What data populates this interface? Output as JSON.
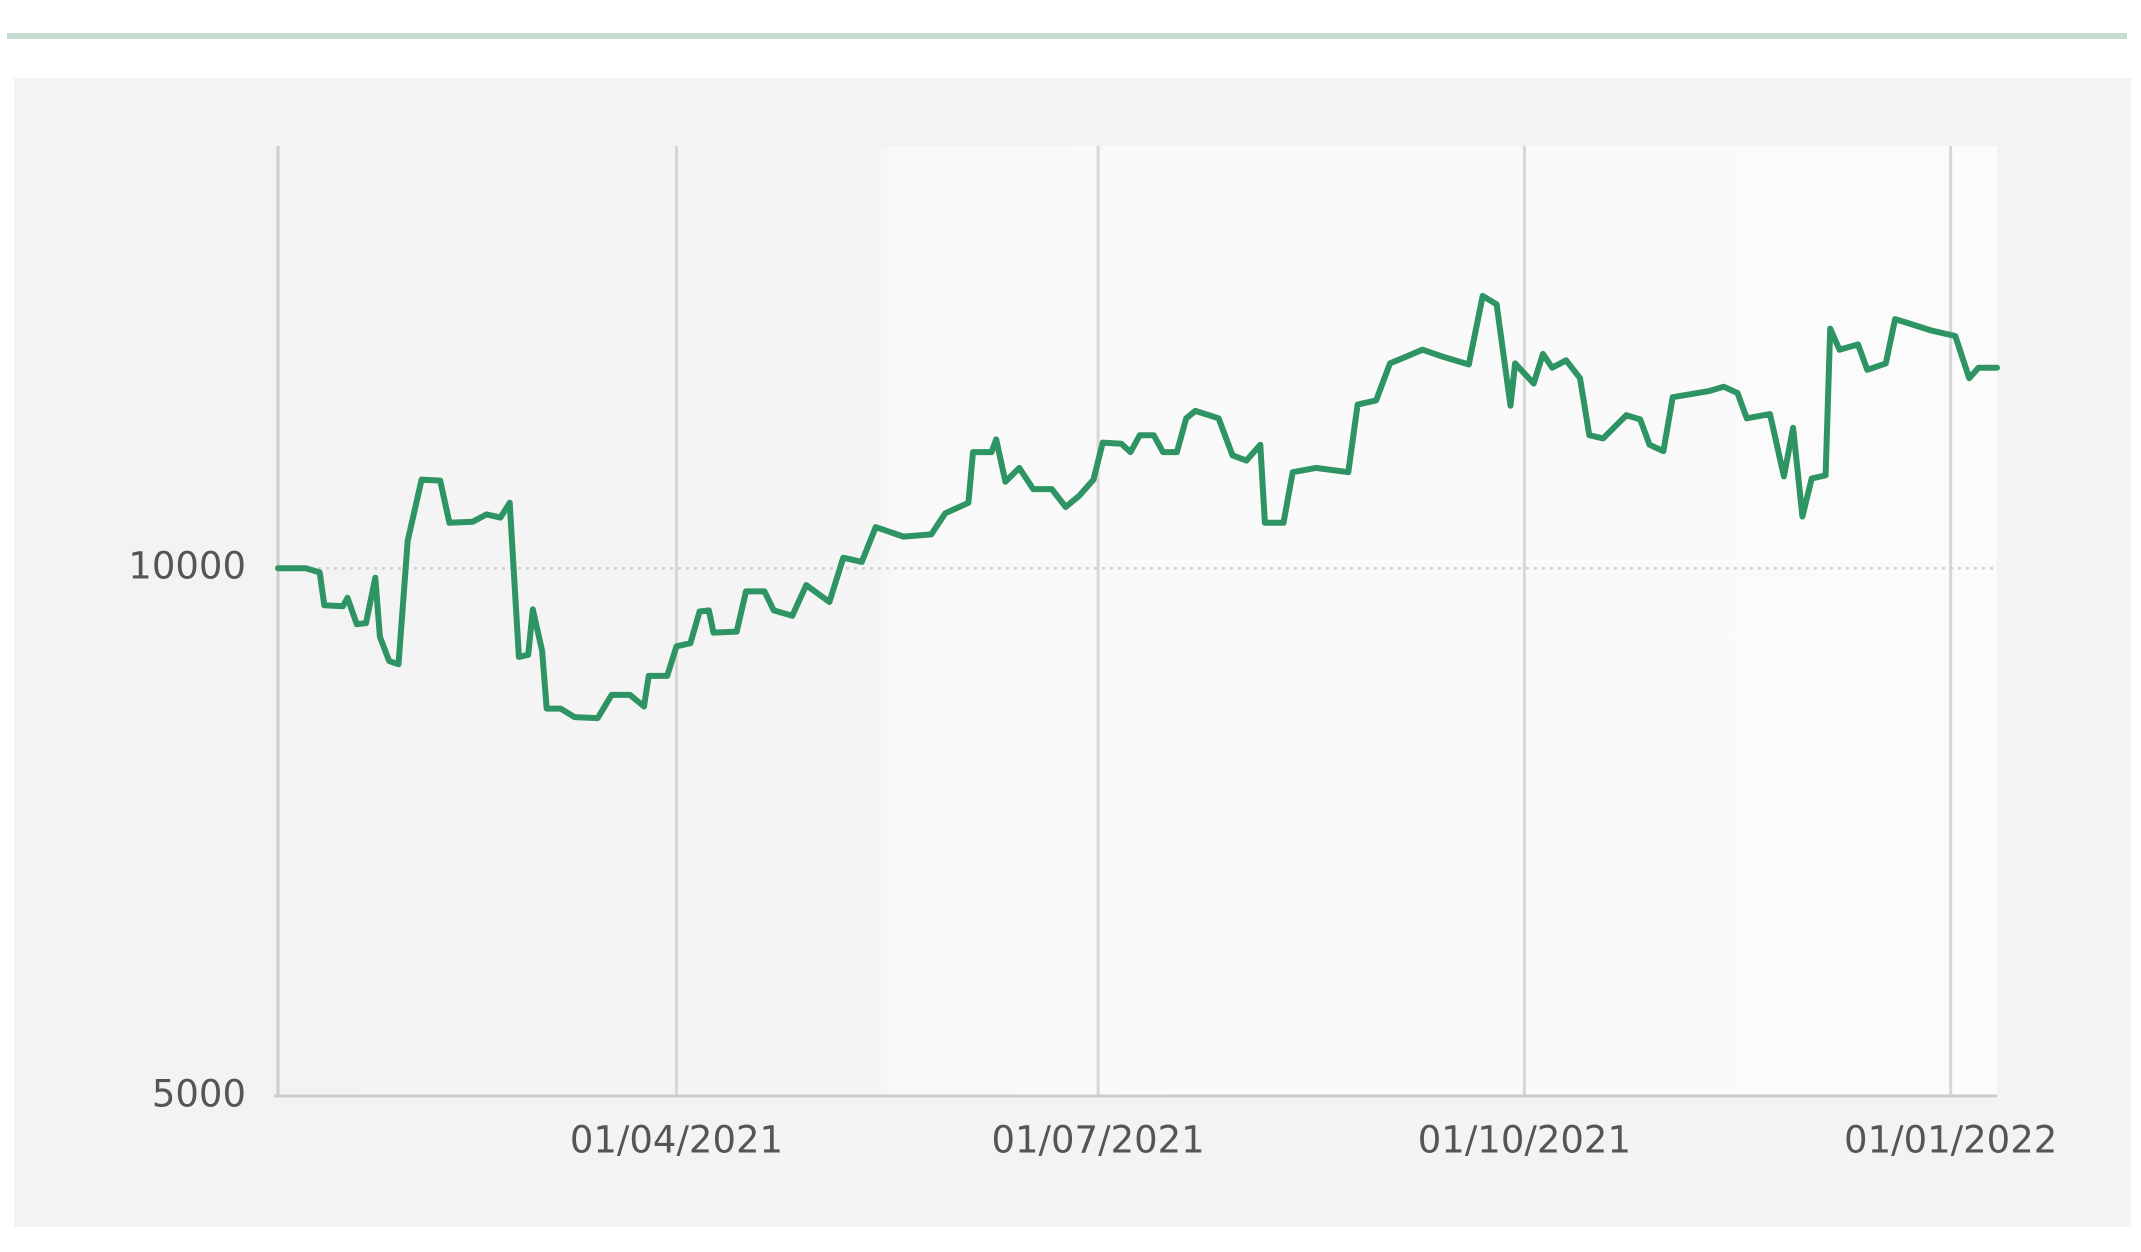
{
  "chart_data": {
    "type": "line",
    "x": [
      "2021-01-05",
      "2021-01-11",
      "2021-01-14",
      "2021-01-15",
      "2021-01-19",
      "2021-01-20",
      "2021-01-22",
      "2021-01-24",
      "2021-01-26",
      "2021-01-27",
      "2021-01-29",
      "2021-01-31",
      "2021-02-02",
      "2021-02-05",
      "2021-02-09",
      "2021-02-11",
      "2021-02-16",
      "2021-02-19",
      "2021-02-22",
      "2021-02-24",
      "2021-02-26",
      "2021-02-28",
      "2021-03-01",
      "2021-03-03",
      "2021-03-04",
      "2021-03-07",
      "2021-03-10",
      "2021-03-15",
      "2021-03-18",
      "2021-03-22",
      "2021-03-25",
      "2021-03-26",
      "2021-03-30",
      "2021-04-01",
      "2021-04-04",
      "2021-04-06",
      "2021-04-08",
      "2021-04-09",
      "2021-04-14",
      "2021-04-16",
      "2021-04-20",
      "2021-04-22",
      "2021-04-26",
      "2021-04-29",
      "2021-05-04",
      "2021-05-07",
      "2021-05-11",
      "2021-05-14",
      "2021-05-20",
      "2021-05-26",
      "2021-05-29",
      "2021-06-03",
      "2021-06-04",
      "2021-06-08",
      "2021-06-09",
      "2021-06-11",
      "2021-06-14",
      "2021-06-17",
      "2021-06-21",
      "2021-06-24",
      "2021-06-27",
      "2021-06-30",
      "2021-07-02",
      "2021-07-06",
      "2021-07-08",
      "2021-07-10",
      "2021-07-13",
      "2021-07-15",
      "2021-07-18",
      "2021-07-20",
      "2021-07-22",
      "2021-07-27",
      "2021-07-30",
      "2021-08-02",
      "2021-08-05",
      "2021-08-06",
      "2021-08-10",
      "2021-08-12",
      "2021-08-17",
      "2021-08-24",
      "2021-08-26",
      "2021-08-30",
      "2021-09-02",
      "2021-09-09",
      "2021-09-13",
      "2021-09-19",
      "2021-09-22",
      "2021-09-25",
      "2021-09-28",
      "2021-09-29",
      "2021-10-03",
      "2021-10-05",
      "2021-10-07",
      "2021-10-10",
      "2021-10-13",
      "2021-10-15",
      "2021-10-18",
      "2021-10-23",
      "2021-10-26",
      "2021-10-28",
      "2021-10-31",
      "2021-11-02",
      "2021-11-10",
      "2021-11-13",
      "2021-11-16",
      "2021-11-18",
      "2021-11-23",
      "2021-11-26",
      "2021-11-28",
      "2021-11-30",
      "2021-12-02",
      "2021-12-05",
      "2021-12-06",
      "2021-12-08",
      "2021-12-12",
      "2021-12-14",
      "2021-12-18",
      "2021-12-20",
      "2021-12-28",
      "2022-01-02",
      "2022-01-05",
      "2022-01-07",
      "2022-01-11"
    ],
    "values": [
      10000,
      10000,
      9960,
      9650,
      9640,
      9720,
      9470,
      9480,
      9910,
      9350,
      9120,
      9090,
      10260,
      10840,
      10830,
      10430,
      10440,
      10510,
      10480,
      10620,
      9160,
      9180,
      9610,
      9220,
      8670,
      8670,
      8590,
      8580,
      8800,
      8800,
      8690,
      8980,
      8980,
      9260,
      9290,
      9590,
      9600,
      9390,
      9400,
      9780,
      9780,
      9600,
      9550,
      9840,
      9680,
      10100,
      10060,
      10390,
      10300,
      10320,
      10520,
      10620,
      11100,
      11100,
      11220,
      10820,
      10950,
      10750,
      10750,
      10580,
      10690,
      10840,
      11190,
      11180,
      11100,
      11260,
      11260,
      11100,
      11100,
      11420,
      11490,
      11420,
      11070,
      11020,
      11170,
      10430,
      10430,
      10910,
      10950,
      10910,
      11550,
      11590,
      11940,
      12070,
      12010,
      11930,
      12580,
      12500,
      11540,
      11940,
      11750,
      12030,
      11900,
      11970,
      11800,
      11260,
      11230,
      11450,
      11410,
      11170,
      11110,
      11620,
      11680,
      11720,
      11660,
      11420,
      11460,
      10870,
      11330,
      10490,
      10850,
      10880,
      12270,
      12070,
      12120,
      11880,
      11940,
      12360,
      12250,
      12200,
      11800,
      11900,
      11900
    ],
    "color": "#2e9463",
    "xlim": [
      "2021-01-05",
      "2022-01-11"
    ],
    "xticks": [
      {
        "value": "2021-04-01",
        "label": "01/04/2021"
      },
      {
        "value": "2021-07-01",
        "label": "01/07/2021"
      },
      {
        "value": "2021-10-01",
        "label": "01/10/2021"
      },
      {
        "value": "2022-01-01",
        "label": "01/01/2022"
      }
    ],
    "ylim": [
      5000,
      14000
    ],
    "yticks": [
      5000,
      10000
    ],
    "grid": true
  }
}
